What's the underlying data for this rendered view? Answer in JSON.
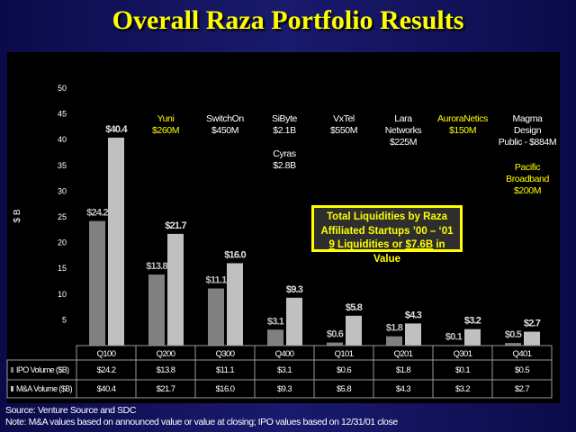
{
  "title": "Overall Raza Portfolio Results",
  "chart_data": {
    "type": "bar",
    "ylabel": "$ B",
    "ylim": [
      0,
      50
    ],
    "yticks": [
      5,
      10,
      15,
      20,
      25,
      30,
      35,
      40,
      45,
      50
    ],
    "categories": [
      "Q100",
      "Q200",
      "Q300",
      "Q400",
      "Q101",
      "Q201",
      "Q301",
      "Q401"
    ],
    "series": [
      {
        "name": "IPO Volume ($B)",
        "color": "#808080",
        "values": [
          24.2,
          13.8,
          11.1,
          3.1,
          0.6,
          1.8,
          0.1,
          0.5
        ],
        "labels": [
          "$24.2",
          "$13.8",
          "$11.1",
          "$3.1",
          "$0.6",
          "$1.8",
          "$0.1",
          "$0.5"
        ]
      },
      {
        "name": "M&A Volume ($B)",
        "color": "#c0c0c0",
        "values": [
          40.4,
          21.7,
          16.0,
          9.3,
          5.8,
          4.3,
          3.2,
          2.7
        ],
        "labels": [
          "$40.4",
          "$21.7",
          "$16.0",
          "$9.3",
          "$5.8",
          "$4.3",
          "$3.2",
          "$2.7"
        ]
      }
    ],
    "grid": false
  },
  "annotations": [
    {
      "cat": 1,
      "lines": [
        "Yuni",
        "$260M"
      ],
      "yellow": true
    },
    {
      "cat": 2,
      "lines": [
        "SwitchOn",
        "$450M"
      ],
      "yellow": false
    },
    {
      "cat": 3,
      "lines": [
        "SiByte",
        "$2.1B",
        "",
        "Cyras",
        "$2.8B"
      ],
      "yellow": false
    },
    {
      "cat": 4,
      "lines": [
        "VxTel",
        "$550M"
      ],
      "yellow": false
    },
    {
      "cat": 5,
      "lines": [
        "Lara",
        "Networks",
        "$225M"
      ],
      "yellow": false
    },
    {
      "cat": 6,
      "lines": [
        "AuroraNetics",
        "$150M"
      ],
      "yellow": true
    },
    {
      "cat": 7,
      "lines": [
        "Magma",
        "Design",
        "Public - $884M"
      ],
      "yellow": false
    },
    {
      "cat": 7,
      "lines": [
        "Pacific",
        "Broadband",
        "$200M"
      ],
      "yellow": true
    }
  ],
  "callout": {
    "line1": "Total Liquidities by Raza",
    "line2": "Affiliated Startups ’00 – ‘01",
    "count": "9",
    "mid": " Liquidities or ",
    "value": "$7.6B",
    "tail": " in Value"
  },
  "source": "Source: Venture Source and SDC",
  "note": "Note: M&A values based on announced value or value at closing; IPO values based on 12/31/01 close"
}
